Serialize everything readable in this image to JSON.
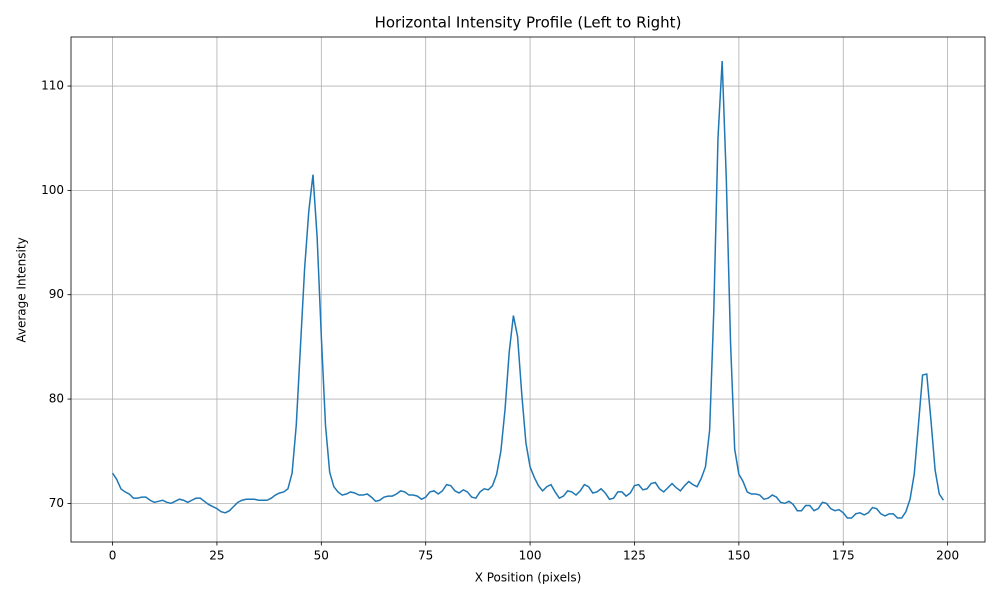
{
  "chart_data": {
    "type": "line",
    "title": "Horizontal Intensity Profile (Left to Right)",
    "x_label": "X Position (pixels)",
    "y_label": "Average Intensity",
    "color": "#1f77b4",
    "grid": true,
    "xlim": [
      -9.95,
      208.95
    ],
    "ylim": [
      66.3,
      114.7
    ],
    "xticks": [
      0,
      25,
      50,
      75,
      100,
      125,
      150,
      175,
      200
    ],
    "yticks": [
      70,
      80,
      90,
      100,
      110
    ],
    "x": [
      0,
      1,
      2,
      3,
      4,
      5,
      6,
      7,
      8,
      9,
      10,
      11,
      12,
      13,
      14,
      15,
      16,
      17,
      18,
      19,
      20,
      21,
      22,
      23,
      24,
      25,
      26,
      27,
      28,
      29,
      30,
      31,
      32,
      33,
      34,
      35,
      36,
      37,
      38,
      39,
      40,
      41,
      42,
      43,
      44,
      45,
      46,
      47,
      48,
      49,
      50,
      51,
      52,
      53,
      54,
      55,
      56,
      57,
      58,
      59,
      60,
      61,
      62,
      63,
      64,
      65,
      66,
      67,
      68,
      69,
      70,
      71,
      72,
      73,
      74,
      75,
      76,
      77,
      78,
      79,
      80,
      81,
      82,
      83,
      84,
      85,
      86,
      87,
      88,
      89,
      90,
      91,
      92,
      93,
      94,
      95,
      96,
      97,
      98,
      99,
      100,
      101,
      102,
      103,
      104,
      105,
      106,
      107,
      108,
      109,
      110,
      111,
      112,
      113,
      114,
      115,
      116,
      117,
      118,
      119,
      120,
      121,
      122,
      123,
      124,
      125,
      126,
      127,
      128,
      129,
      130,
      131,
      132,
      133,
      134,
      135,
      136,
      137,
      138,
      139,
      140,
      141,
      142,
      143,
      144,
      145,
      146,
      147,
      148,
      149,
      150,
      151,
      152,
      153,
      154,
      155,
      156,
      157,
      158,
      159,
      160,
      161,
      162,
      163,
      164,
      165,
      166,
      167,
      168,
      169,
      170,
      171,
      172,
      173,
      174,
      175,
      176,
      177,
      178,
      179,
      180,
      181,
      182,
      183,
      184,
      185,
      186,
      187,
      188,
      189,
      190,
      191,
      192,
      193,
      194,
      195,
      196,
      197,
      198,
      199
    ],
    "values": [
      72.9,
      72.3,
      71.4,
      71.1,
      70.9,
      70.5,
      70.5,
      70.6,
      70.6,
      70.3,
      70.1,
      70.2,
      70.3,
      70.1,
      70.0,
      70.2,
      70.4,
      70.3,
      70.1,
      70.3,
      70.5,
      70.5,
      70.2,
      69.9,
      69.7,
      69.5,
      69.2,
      69.1,
      69.3,
      69.7,
      70.1,
      70.3,
      70.4,
      70.4,
      70.4,
      70.3,
      70.3,
      70.3,
      70.5,
      70.8,
      71.0,
      71.1,
      71.4,
      72.9,
      77.5,
      85.0,
      92.5,
      98.0,
      101.5,
      95.5,
      86.0,
      77.5,
      73.0,
      71.6,
      71.1,
      70.8,
      70.9,
      71.1,
      71.0,
      70.8,
      70.8,
      70.9,
      70.6,
      70.2,
      70.3,
      70.6,
      70.7,
      70.7,
      70.9,
      71.2,
      71.1,
      70.8,
      70.8,
      70.7,
      70.4,
      70.6,
      71.1,
      71.2,
      70.9,
      71.2,
      71.8,
      71.7,
      71.2,
      71.0,
      71.3,
      71.1,
      70.6,
      70.5,
      71.1,
      71.4,
      71.3,
      71.7,
      72.8,
      75.0,
      79.0,
      84.5,
      88.0,
      86.0,
      80.5,
      75.8,
      73.5,
      72.5,
      71.7,
      71.2,
      71.6,
      71.8,
      71.1,
      70.5,
      70.7,
      71.2,
      71.1,
      70.8,
      71.2,
      71.8,
      71.6,
      71.0,
      71.1,
      71.4,
      71.0,
      70.4,
      70.5,
      71.1,
      71.1,
      70.7,
      71.0,
      71.7,
      71.8,
      71.3,
      71.4,
      71.9,
      72.0,
      71.4,
      71.1,
      71.5,
      71.9,
      71.5,
      71.2,
      71.7,
      72.1,
      71.8,
      71.6,
      72.4,
      73.5,
      77.0,
      88.5,
      105.0,
      112.4,
      101.0,
      85.5,
      75.2,
      72.8,
      72.1,
      71.1,
      70.9,
      70.9,
      70.8,
      70.4,
      70.5,
      70.8,
      70.6,
      70.1,
      70.0,
      70.2,
      69.9,
      69.3,
      69.3,
      69.8,
      69.8,
      69.3,
      69.5,
      70.1,
      70.0,
      69.5,
      69.3,
      69.4,
      69.1,
      68.6,
      68.6,
      69.0,
      69.1,
      68.9,
      69.1,
      69.6,
      69.5,
      69.0,
      68.8,
      69.0,
      69.0,
      68.6,
      68.6,
      69.2,
      70.4,
      72.8,
      77.5,
      82.3,
      82.4,
      78.0,
      73.2,
      70.9,
      70.3
    ]
  }
}
